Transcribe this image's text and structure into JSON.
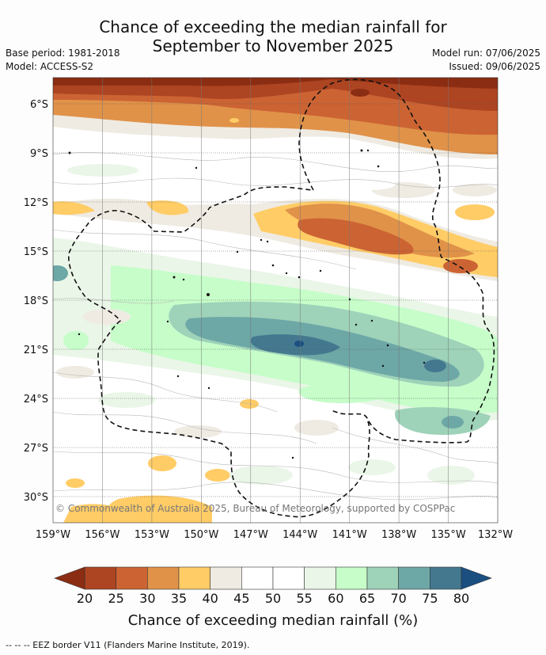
{
  "header": {
    "title_line1": "Chance of exceeding the median rainfall for",
    "title_line2": "September to November 2025",
    "base_period": "Base period: 1981-2018",
    "model": "Model: ACCESS-S2",
    "model_run": "Model run: 07/06/2025",
    "issued": "Issued: 09/06/2025"
  },
  "map": {
    "copyright": "© Commonwealth of Australia 2025, Bureau of Meteorology, supported by COSPPac",
    "lat_ticks": [
      "6°S",
      "9°S",
      "12°S",
      "15°S",
      "18°S",
      "21°S",
      "24°S",
      "27°S",
      "30°S"
    ],
    "lon_ticks": [
      "159°W",
      "156°W",
      "153°W",
      "150°W",
      "147°W",
      "144°W",
      "141°W",
      "138°W",
      "135°W",
      "132°W"
    ]
  },
  "colorbar": {
    "ticks": [
      "20",
      "25",
      "30",
      "35",
      "40",
      "45",
      "50",
      "55",
      "60",
      "65",
      "70",
      "75",
      "80"
    ],
    "colors": [
      "#8b2d12",
      "#ad4422",
      "#cc6333",
      "#e09249",
      "#ffcc66",
      "#efebe3",
      "#ffffff",
      "#ffffff",
      "#eaf6e8",
      "#c6fdc9",
      "#9ed2b9",
      "#6da7a6",
      "#44788f",
      "#1a4f80"
    ],
    "label": "Chance of exceeding median rainfall (%)"
  },
  "footer": "--  --  -- EEZ border V11 (Flanders Marine Institute, 2019)."
}
